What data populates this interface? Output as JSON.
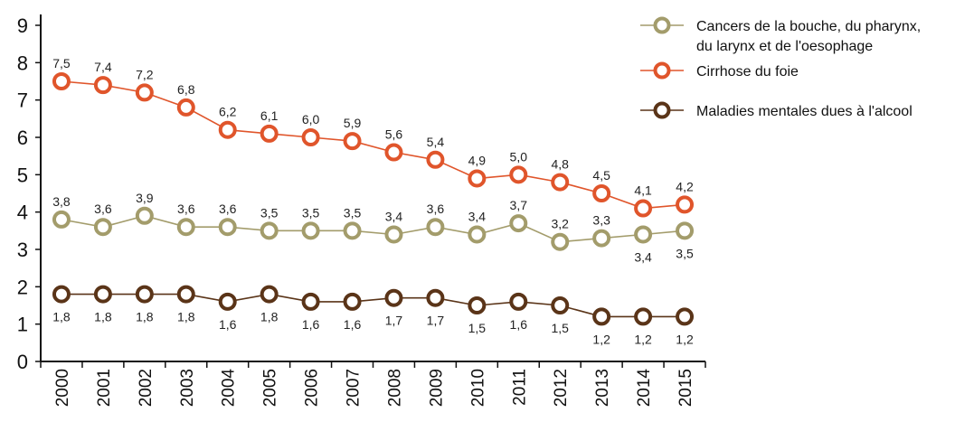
{
  "chart_data": {
    "type": "line",
    "title": "",
    "xlabel": "",
    "ylabel": "",
    "ylim": [
      0,
      9
    ],
    "yticks": [
      "0",
      "1",
      "2",
      "3",
      "4",
      "5",
      "6",
      "7",
      "8",
      "9"
    ],
    "x": [
      "2000",
      "2001",
      "2002",
      "2003",
      "2004",
      "2005",
      "2006",
      "2007",
      "2008",
      "2009",
      "2010",
      "2011",
      "2012",
      "2013",
      "2014",
      "2015"
    ],
    "grid": false,
    "legend_position": "top-right",
    "series": [
      {
        "name": "Cancers de la bouche, du pharynx, du larynx et de l'oesophage",
        "legend_lines": [
          "Cancers de la bouche, du pharynx,",
          "du larynx et de l'oesophage"
        ],
        "color": "#a39c6b",
        "values": [
          3.8,
          3.6,
          3.9,
          3.6,
          3.6,
          3.5,
          3.5,
          3.5,
          3.4,
          3.6,
          3.4,
          3.7,
          3.2,
          3.3,
          3.4,
          3.5
        ],
        "labels": [
          "3,8",
          "3,6",
          "3,9",
          "3,6",
          "3,6",
          "3,5",
          "3,5",
          "3,5",
          "3,4",
          "3,6",
          "3,4",
          "3,7",
          "3,2",
          "3,3",
          "3,4",
          "3,5"
        ]
      },
      {
        "name": "Cirrhose du foie",
        "legend_lines": [
          "Cirrhose du foie"
        ],
        "color": "#e0552b",
        "values": [
          7.5,
          7.4,
          7.2,
          6.8,
          6.2,
          6.1,
          6.0,
          5.9,
          5.6,
          5.4,
          4.9,
          5.0,
          4.8,
          4.5,
          4.1,
          4.2
        ],
        "labels": [
          "7,5",
          "7,4",
          "7,2",
          "6,8",
          "6,2",
          "6,1",
          "6,0",
          "5,9",
          "5,6",
          "5,4",
          "4,9",
          "5,0",
          "4,8",
          "4,5",
          "4,1",
          "4,2"
        ]
      },
      {
        "name": "Maladies mentales dues à l'alcool",
        "legend_lines": [
          "Maladies mentales dues à l'alcool"
        ],
        "color": "#5a3418",
        "values": [
          1.8,
          1.8,
          1.8,
          1.8,
          1.6,
          1.8,
          1.6,
          1.6,
          1.7,
          1.7,
          1.5,
          1.6,
          1.5,
          1.2,
          1.2,
          1.2
        ],
        "labels": [
          "1,8",
          "1,8",
          "1,8",
          "1,8",
          "1,6",
          "1,8",
          "1,6",
          "1,6",
          "1,7",
          "1,7",
          "1,5",
          "1,6",
          "1,5",
          "1,2",
          "1,2",
          "1,2"
        ]
      }
    ]
  }
}
